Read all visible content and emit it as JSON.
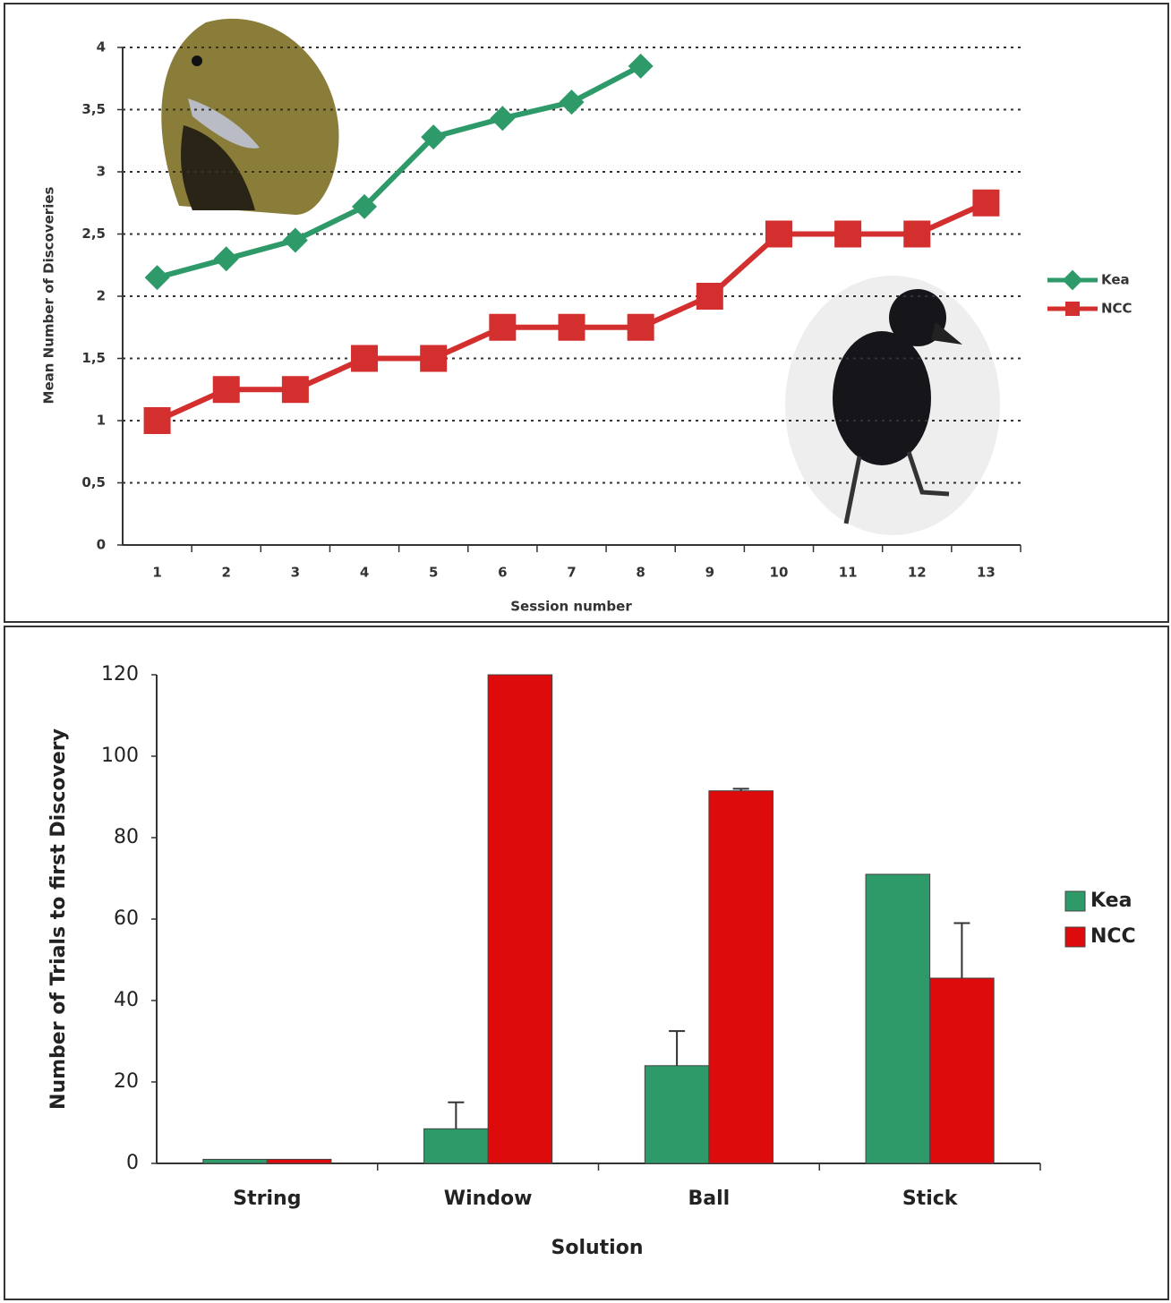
{
  "chart_data": [
    {
      "type": "line",
      "x_label": "Session number",
      "y_label": "Mean Number of Discoveries",
      "categories": [
        "1",
        "2",
        "3",
        "4",
        "5",
        "6",
        "7",
        "8",
        "9",
        "10",
        "11",
        "12",
        "13"
      ],
      "series": [
        {
          "name": "Kea",
          "color": "#2e9a6a",
          "marker": "diamond",
          "values": [
            2.15,
            2.3,
            2.45,
            2.72,
            3.28,
            3.43,
            3.56,
            3.85,
            null,
            null,
            null,
            null,
            null
          ]
        },
        {
          "name": "NCC",
          "color": "#d32f2f",
          "marker": "square",
          "values": [
            1,
            1.25,
            1.25,
            1.5,
            1.5,
            1.75,
            1.75,
            1.75,
            2,
            2.5,
            2.5,
            2.5,
            2.75
          ]
        }
      ],
      "ylim": [
        0,
        4
      ],
      "yticks": [
        0,
        {
          "value": 0.5,
          "label": "0,5"
        },
        1,
        {
          "value": 1.5,
          "label": "1,5"
        },
        2,
        {
          "value": 2.5,
          "label": "2,5"
        },
        3,
        {
          "value": 3.5,
          "label": "3,5"
        },
        4
      ],
      "grid": true,
      "legend": "right"
    },
    {
      "type": "bar",
      "x_label": "Solution",
      "y_label": "Number of Trials to first Discovery",
      "categories": [
        "String",
        "Window",
        "Ball",
        "Stick"
      ],
      "series": [
        {
          "name": "Kea",
          "color": "#2e9a6a",
          "values": [
            1,
            8.5,
            24,
            71
          ],
          "errors": [
            0,
            6.5,
            8.5,
            0
          ]
        },
        {
          "name": "NCC",
          "color": "#dd0b0b",
          "values": [
            1,
            120,
            91.5,
            45.5
          ],
          "errors": [
            0,
            0,
            0.5,
            13.5
          ]
        }
      ],
      "ylim": [
        0,
        120
      ],
      "yticks": [
        0,
        20,
        40,
        60,
        80,
        100,
        120
      ],
      "grid": false,
      "legend": "right"
    }
  ]
}
